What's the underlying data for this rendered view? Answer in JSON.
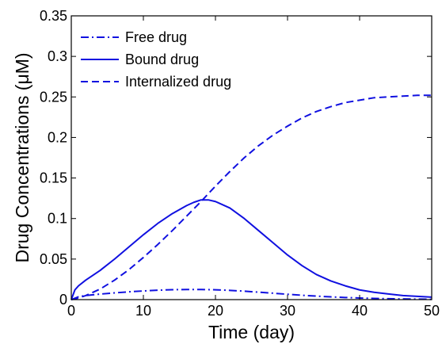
{
  "chart_data": {
    "type": "line",
    "xlabel": "Time (day)",
    "ylabel": "Drug Concentrations (μM)",
    "xlim": [
      0,
      50
    ],
    "ylim": [
      0,
      0.35
    ],
    "xticks": [
      0,
      10,
      20,
      30,
      40,
      50
    ],
    "xtick_labels": [
      "0",
      "10",
      "20",
      "30",
      "40",
      "50"
    ],
    "yticks": [
      0,
      0.05,
      0.1,
      0.15,
      0.2,
      0.25,
      0.3,
      0.35
    ],
    "ytick_labels": [
      "0",
      "0.05",
      "0.1",
      "0.15",
      "0.2",
      "0.25",
      "0.3",
      "0.35"
    ],
    "grid": false,
    "legend_position": "top-left",
    "line_color": "#1010e0",
    "series": [
      {
        "name": "Free drug",
        "style": "dashdot",
        "x": [
          0,
          1,
          2,
          4,
          6,
          8,
          10,
          12,
          14,
          16,
          18,
          20,
          22,
          24,
          26,
          28,
          30,
          32,
          34,
          36,
          38,
          40,
          42,
          44,
          46,
          48,
          50
        ],
        "y": [
          0,
          0.0035,
          0.005,
          0.0068,
          0.0083,
          0.0096,
          0.0107,
          0.0116,
          0.0122,
          0.0125,
          0.0125,
          0.0121,
          0.0114,
          0.0104,
          0.0092,
          0.0079,
          0.0066,
          0.0054,
          0.0043,
          0.0034,
          0.0026,
          0.002,
          0.0015,
          0.0011,
          0.0008,
          0.0006,
          0.0004
        ]
      },
      {
        "name": "Bound drug",
        "style": "solid",
        "x": [
          0,
          0.5,
          1,
          2,
          4,
          6,
          8,
          10,
          12,
          14,
          16,
          17,
          18,
          19,
          20,
          22,
          24,
          26,
          28,
          30,
          32,
          34,
          36,
          38,
          40,
          42,
          44,
          46,
          48,
          50
        ],
        "y": [
          0,
          0.012,
          0.017,
          0.024,
          0.036,
          0.05,
          0.065,
          0.08,
          0.094,
          0.106,
          0.116,
          0.12,
          0.123,
          0.123,
          0.121,
          0.113,
          0.1,
          0.085,
          0.07,
          0.055,
          0.042,
          0.031,
          0.023,
          0.017,
          0.012,
          0.009,
          0.007,
          0.005,
          0.004,
          0.003
        ]
      },
      {
        "name": "Internalized drug",
        "style": "dashed",
        "x": [
          0,
          1,
          2,
          4,
          6,
          8,
          10,
          12,
          14,
          16,
          18,
          20,
          22,
          24,
          26,
          28,
          30,
          32,
          34,
          36,
          38,
          40,
          42,
          44,
          46,
          48,
          50
        ],
        "y": [
          0,
          0.002,
          0.005,
          0.013,
          0.024,
          0.037,
          0.052,
          0.068,
          0.085,
          0.103,
          0.121,
          0.14,
          0.158,
          0.175,
          0.19,
          0.203,
          0.214,
          0.224,
          0.232,
          0.238,
          0.243,
          0.246,
          0.249,
          0.25,
          0.251,
          0.252,
          0.252
        ]
      }
    ]
  }
}
